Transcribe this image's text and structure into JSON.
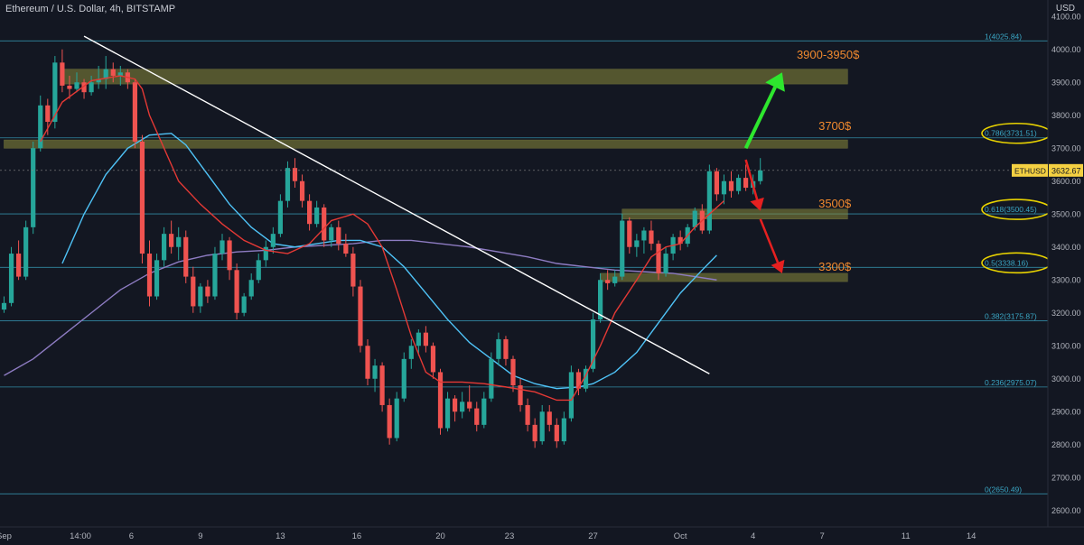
{
  "header": {
    "title": "Ethereum / U.S. Dollar, 4h, BITSTAMP",
    "currency": "USD"
  },
  "price_tag": {
    "symbol": "ETHUSD",
    "value": "3632.67"
  },
  "colors": {
    "background": "#131722",
    "up": "#26a69a",
    "down": "#ef5350",
    "zone": "#8a8a3a",
    "fib": "#3aa6c4",
    "ema_red": "#e53935",
    "ma_blue": "#4fc3f7",
    "ma_purple": "#8e7cc3",
    "trend": "#ffffff",
    "annotation_orange": "#f0892e",
    "highlight": "#e8d200",
    "arrow_up": "#2ee62e",
    "arrow_down": "#e62020"
  },
  "chart_data": {
    "type": "candlestick",
    "ylim": [
      2550,
      4150
    ],
    "y_ticks": [
      "2600.00",
      "2700.00",
      "2800.00",
      "2900.00",
      "3000.00",
      "3100.00",
      "3200.00",
      "3300.00",
      "3400.00",
      "3500.00",
      "3600.00",
      "3700.00",
      "3800.00",
      "3900.00",
      "4000.00",
      "4100.00"
    ],
    "x_ticks": [
      "Sep",
      "14:00",
      "6",
      "9",
      "13",
      "16",
      "20",
      "23",
      "27",
      "Oct",
      "4",
      "7",
      "11",
      "14"
    ],
    "fib_levels": [
      {
        "label": "1(4025.84)",
        "value": 4025.84
      },
      {
        "label": "0.786(3731.51)",
        "value": 3731.51
      },
      {
        "label": "0.618(3500.45)",
        "value": 3500.45
      },
      {
        "label": "0.5(3338.16)",
        "value": 3338.16
      },
      {
        "label": "0.382(3175.87)",
        "value": 3175.87
      },
      {
        "label": "0.236(2975.07)",
        "value": 2975.07
      },
      {
        "label": "0(2650.49)",
        "value": 2650.49
      }
    ],
    "zones": [
      {
        "from_x": 8,
        "to_x": 116,
        "low": 3895,
        "high": 3940
      },
      {
        "from_x": 0,
        "to_x": 116,
        "low": 3700,
        "high": 3725
      },
      {
        "from_x": 85,
        "to_x": 116,
        "low": 3485,
        "high": 3515
      },
      {
        "from_x": 82,
        "to_x": 116,
        "low": 3295,
        "high": 3320
      }
    ],
    "annotations": [
      {
        "text": "3900-3950$",
        "x": 109,
        "y": 3972
      },
      {
        "text": "3700$",
        "x": 112,
        "y": 3755
      },
      {
        "text": "3500$",
        "x": 112,
        "y": 3520
      },
      {
        "text": "3300$",
        "x": 112,
        "y": 3328
      }
    ],
    "trendline": [
      [
        11,
        4040
      ],
      [
        97,
        3015
      ]
    ],
    "arrows": [
      {
        "dir": "up",
        "from": [
          102,
          3700
        ],
        "to": [
          107,
          3930
        ]
      },
      {
        "dir": "down",
        "from": [
          102,
          3665
        ],
        "to": [
          104,
          3510
        ]
      },
      {
        "dir": "down",
        "from": [
          104,
          3485
        ],
        "to": [
          107,
          3320
        ]
      }
    ],
    "ema_red": [
      [
        5,
        3720
      ],
      [
        8,
        3840
      ],
      [
        12,
        3905
      ],
      [
        16,
        3920
      ],
      [
        18,
        3910
      ],
      [
        19,
        3880
      ],
      [
        20,
        3800
      ],
      [
        22,
        3700
      ],
      [
        24,
        3600
      ],
      [
        27,
        3530
      ],
      [
        30,
        3470
      ],
      [
        33,
        3420
      ],
      [
        36,
        3390
      ],
      [
        39,
        3380
      ],
      [
        42,
        3410
      ],
      [
        45,
        3480
      ],
      [
        48,
        3500
      ],
      [
        50,
        3470
      ],
      [
        52,
        3400
      ],
      [
        54,
        3270
      ],
      [
        56,
        3130
      ],
      [
        58,
        3020
      ],
      [
        60,
        2990
      ],
      [
        63,
        2990
      ],
      [
        66,
        2985
      ],
      [
        69,
        2975
      ],
      [
        73,
        2960
      ],
      [
        76,
        2935
      ],
      [
        78,
        2935
      ],
      [
        80,
        3010
      ],
      [
        82,
        3100
      ],
      [
        84,
        3200
      ],
      [
        87,
        3300
      ],
      [
        89,
        3370
      ],
      [
        91,
        3400
      ],
      [
        93,
        3410
      ],
      [
        95,
        3460
      ],
      [
        97,
        3500
      ],
      [
        99,
        3540
      ]
    ],
    "ma_blue": [
      [
        8,
        3350
      ],
      [
        11,
        3500
      ],
      [
        14,
        3620
      ],
      [
        17,
        3700
      ],
      [
        20,
        3740
      ],
      [
        23,
        3745
      ],
      [
        25,
        3710
      ],
      [
        28,
        3620
      ],
      [
        31,
        3530
      ],
      [
        34,
        3460
      ],
      [
        37,
        3410
      ],
      [
        40,
        3400
      ],
      [
        43,
        3410
      ],
      [
        46,
        3420
      ],
      [
        49,
        3420
      ],
      [
        52,
        3400
      ],
      [
        55,
        3340
      ],
      [
        58,
        3260
      ],
      [
        61,
        3180
      ],
      [
        64,
        3110
      ],
      [
        67,
        3060
      ],
      [
        70,
        3010
      ],
      [
        73,
        2985
      ],
      [
        76,
        2970
      ],
      [
        79,
        2975
      ],
      [
        81,
        2985
      ],
      [
        84,
        3020
      ],
      [
        87,
        3080
      ],
      [
        90,
        3170
      ],
      [
        93,
        3260
      ],
      [
        96,
        3330
      ],
      [
        98,
        3375
      ]
    ],
    "ma_purple": [
      [
        0,
        3010
      ],
      [
        4,
        3060
      ],
      [
        8,
        3130
      ],
      [
        12,
        3200
      ],
      [
        16,
        3270
      ],
      [
        20,
        3320
      ],
      [
        24,
        3355
      ],
      [
        28,
        3375
      ],
      [
        32,
        3385
      ],
      [
        36,
        3390
      ],
      [
        40,
        3400
      ],
      [
        44,
        3405
      ],
      [
        48,
        3410
      ],
      [
        52,
        3420
      ],
      [
        56,
        3420
      ],
      [
        60,
        3410
      ],
      [
        64,
        3400
      ],
      [
        68,
        3385
      ],
      [
        72,
        3370
      ],
      [
        76,
        3350
      ],
      [
        80,
        3340
      ],
      [
        84,
        3330
      ],
      [
        88,
        3325
      ],
      [
        92,
        3320
      ],
      [
        95,
        3310
      ],
      [
        98,
        3300
      ]
    ],
    "candles": [
      [
        3210,
        3250,
        3200,
        3230
      ],
      [
        3230,
        3400,
        3220,
        3380
      ],
      [
        3380,
        3420,
        3300,
        3310
      ],
      [
        3310,
        3480,
        3300,
        3460
      ],
      [
        3460,
        3720,
        3440,
        3700
      ],
      [
        3700,
        3860,
        3690,
        3830
      ],
      [
        3830,
        3850,
        3740,
        3780
      ],
      [
        3780,
        3980,
        3760,
        3960
      ],
      [
        3960,
        4000,
        3870,
        3890
      ],
      [
        3890,
        3920,
        3850,
        3880
      ],
      [
        3880,
        3930,
        3870,
        3900
      ],
      [
        3900,
        3910,
        3850,
        3870
      ],
      [
        3870,
        3920,
        3860,
        3900
      ],
      [
        3900,
        3950,
        3880,
        3910
      ],
      [
        3910,
        3980,
        3880,
        3940
      ],
      [
        3940,
        3960,
        3900,
        3920
      ],
      [
        3920,
        3950,
        3890,
        3930
      ],
      [
        3930,
        3940,
        3880,
        3900
      ],
      [
        3900,
        3910,
        3700,
        3720
      ],
      [
        3720,
        3740,
        3350,
        3380
      ],
      [
        3380,
        3420,
        3220,
        3250
      ],
      [
        3250,
        3380,
        3240,
        3360
      ],
      [
        3360,
        3460,
        3340,
        3440
      ],
      [
        3440,
        3480,
        3380,
        3400
      ],
      [
        3400,
        3460,
        3360,
        3430
      ],
      [
        3430,
        3450,
        3290,
        3310
      ],
      [
        3310,
        3340,
        3200,
        3220
      ],
      [
        3220,
        3290,
        3200,
        3280
      ],
      [
        3280,
        3300,
        3230,
        3250
      ],
      [
        3250,
        3400,
        3240,
        3380
      ],
      [
        3380,
        3440,
        3360,
        3420
      ],
      [
        3420,
        3430,
        3300,
        3330
      ],
      [
        3330,
        3350,
        3180,
        3200
      ],
      [
        3200,
        3260,
        3190,
        3250
      ],
      [
        3250,
        3320,
        3240,
        3300
      ],
      [
        3300,
        3380,
        3290,
        3360
      ],
      [
        3360,
        3420,
        3340,
        3400
      ],
      [
        3400,
        3460,
        3380,
        3440
      ],
      [
        3440,
        3560,
        3430,
        3540
      ],
      [
        3540,
        3660,
        3520,
        3640
      ],
      [
        3640,
        3670,
        3580,
        3600
      ],
      [
        3600,
        3620,
        3520,
        3540
      ],
      [
        3540,
        3560,
        3450,
        3470
      ],
      [
        3470,
        3540,
        3460,
        3520
      ],
      [
        3520,
        3530,
        3400,
        3420
      ],
      [
        3420,
        3470,
        3400,
        3460
      ],
      [
        3460,
        3480,
        3390,
        3410
      ],
      [
        3410,
        3440,
        3370,
        3380
      ],
      [
        3380,
        3400,
        3250,
        3280
      ],
      [
        3280,
        3300,
        3080,
        3100
      ],
      [
        3100,
        3120,
        2980,
        3000
      ],
      [
        3000,
        3060,
        2960,
        3040
      ],
      [
        3040,
        3050,
        2900,
        2920
      ],
      [
        2920,
        2940,
        2800,
        2820
      ],
      [
        2820,
        2960,
        2810,
        2940
      ],
      [
        2940,
        3080,
        2930,
        3060
      ],
      [
        3060,
        3120,
        3030,
        3100
      ],
      [
        3100,
        3150,
        3070,
        3140
      ],
      [
        3140,
        3160,
        3080,
        3100
      ],
      [
        3100,
        3110,
        3000,
        3020
      ],
      [
        3020,
        3030,
        2830,
        2850
      ],
      [
        2850,
        2960,
        2840,
        2940
      ],
      [
        2940,
        2950,
        2870,
        2900
      ],
      [
        2900,
        2960,
        2880,
        2930
      ],
      [
        2930,
        2980,
        2900,
        2910
      ],
      [
        2910,
        2930,
        2840,
        2860
      ],
      [
        2860,
        2960,
        2850,
        2940
      ],
      [
        2940,
        3080,
        2930,
        3060
      ],
      [
        3060,
        3140,
        3040,
        3120
      ],
      [
        3120,
        3130,
        3040,
        3060
      ],
      [
        3060,
        3070,
        2960,
        2980
      ],
      [
        2980,
        3000,
        2900,
        2920
      ],
      [
        2920,
        2940,
        2840,
        2860
      ],
      [
        2860,
        2880,
        2790,
        2810
      ],
      [
        2810,
        2920,
        2800,
        2900
      ],
      [
        2900,
        2920,
        2840,
        2860
      ],
      [
        2860,
        2880,
        2790,
        2810
      ],
      [
        2810,
        2900,
        2800,
        2880
      ],
      [
        2880,
        3040,
        2870,
        3020
      ],
      [
        3020,
        3030,
        2950,
        2970
      ],
      [
        2970,
        3040,
        2960,
        3030
      ],
      [
        3030,
        3200,
        3020,
        3180
      ],
      [
        3180,
        3320,
        3170,
        3300
      ],
      [
        3300,
        3330,
        3270,
        3290
      ],
      [
        3290,
        3330,
        3280,
        3310
      ],
      [
        3310,
        3500,
        3300,
        3480
      ],
      [
        3480,
        3490,
        3380,
        3400
      ],
      [
        3400,
        3440,
        3370,
        3420
      ],
      [
        3420,
        3460,
        3380,
        3450
      ],
      [
        3450,
        3480,
        3390,
        3410
      ],
      [
        3410,
        3420,
        3300,
        3320
      ],
      [
        3320,
        3400,
        3310,
        3380
      ],
      [
        3380,
        3440,
        3360,
        3430
      ],
      [
        3430,
        3450,
        3390,
        3410
      ],
      [
        3410,
        3470,
        3400,
        3460
      ],
      [
        3460,
        3520,
        3450,
        3510
      ],
      [
        3510,
        3530,
        3440,
        3450
      ],
      [
        3450,
        3650,
        3440,
        3630
      ],
      [
        3630,
        3640,
        3540,
        3560
      ],
      [
        3560,
        3620,
        3530,
        3600
      ],
      [
        3600,
        3630,
        3550,
        3570
      ],
      [
        3570,
        3620,
        3560,
        3610
      ],
      [
        3610,
        3650,
        3570,
        3580
      ],
      [
        3580,
        3620,
        3560,
        3600
      ],
      [
        3600,
        3670,
        3590,
        3632.67
      ]
    ]
  }
}
